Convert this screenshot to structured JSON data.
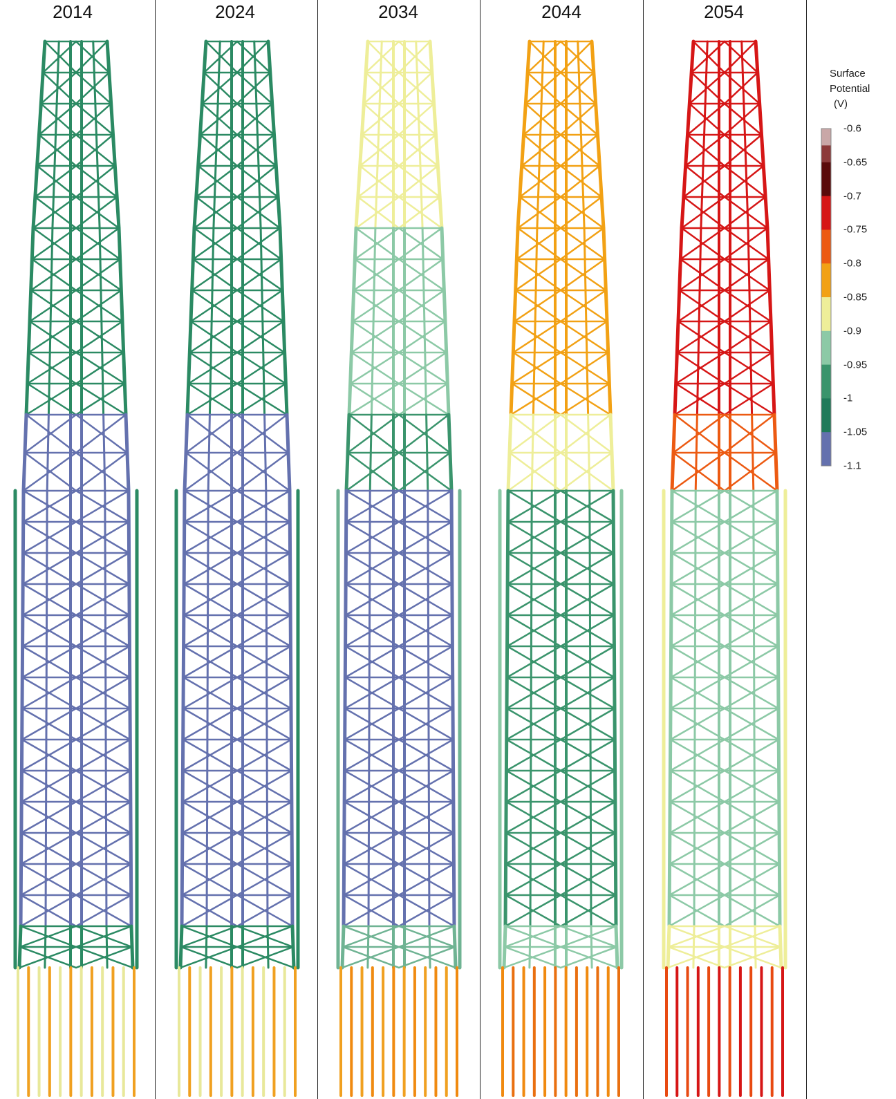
{
  "panels": [
    {
      "year": "2014",
      "top": "#2b8a63",
      "upper": "#2b8a63",
      "mid": "#6471ae",
      "lower": "#6471ae",
      "base": "#2b8a63",
      "piles": [
        "#e8e89a",
        "#f0a020"
      ]
    },
    {
      "year": "2024",
      "top": "#2b8a63",
      "upper": "#2b8a63",
      "mid": "#6471ae",
      "lower": "#6471ae",
      "base": "#2b8a63",
      "piles": [
        "#e8e89a",
        "#f0a020"
      ]
    },
    {
      "year": "2034",
      "top": "#eeee99",
      "upper": "#8cc9a6",
      "mid": "#3a946c",
      "lower": "#6471ae",
      "base": "#6fb393",
      "piles": [
        "#f0a020",
        "#f08a10"
      ]
    },
    {
      "year": "2044",
      "top": "#f2a114",
      "upper": "#f2a114",
      "mid": "#eeee99",
      "lower": "#3a946c",
      "base": "#8cc9a6",
      "piles": [
        "#f08a10",
        "#e96f10"
      ]
    },
    {
      "year": "2054",
      "top": "#d61616",
      "upper": "#d61616",
      "mid": "#ec5a12",
      "lower": "#8cc9a6",
      "base": "#eeee99",
      "piles": [
        "#e84a12",
        "#d61616"
      ]
    }
  ],
  "legend": {
    "title_line1": "Surface",
    "title_line2": "Potential",
    "title_line3": "(V)",
    "ticks": [
      "-0.6",
      "-0.65",
      "-0.7",
      "-0.75",
      "-0.8",
      "-0.85",
      "-0.9",
      "-0.95",
      "-1",
      "-1.05",
      "-1.1"
    ],
    "colors": [
      "#c9a7a7",
      "#8c3a3a",
      "#5a0a0a",
      "#d61616",
      "#ec5a12",
      "#f2a114",
      "#eeee99",
      "#8cc9a6",
      "#3a946c",
      "#1f7a5a",
      "#6471ae",
      "#6471ae"
    ]
  }
}
